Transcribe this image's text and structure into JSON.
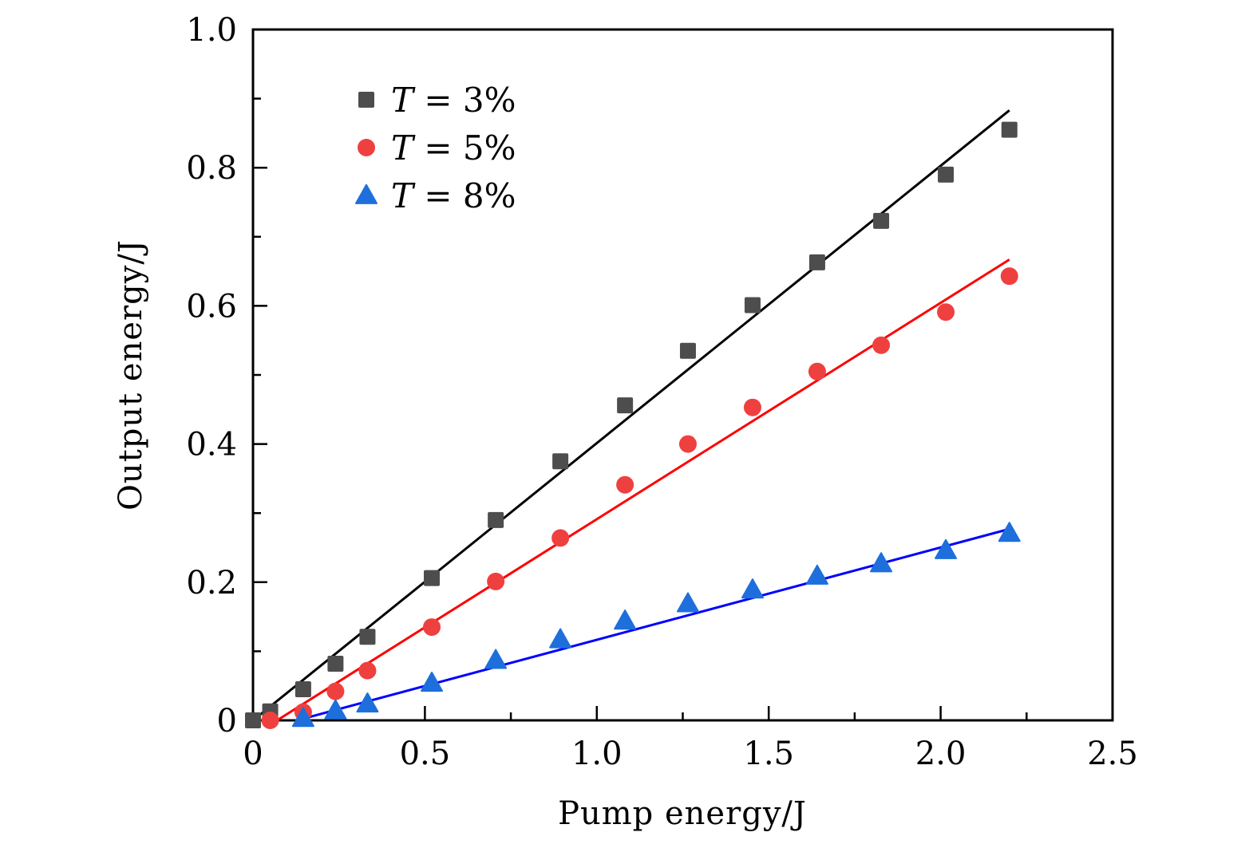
{
  "chart_data": {
    "type": "scatter",
    "title": "",
    "xlabel": "Pump energy/J",
    "ylabel": "Output energy/J",
    "xlim": [
      0,
      2.5
    ],
    "ylim": [
      0,
      1.0
    ],
    "xticks": [
      0,
      0.5,
      1.0,
      1.5,
      2.0,
      2.5
    ],
    "xtick_labels": [
      "0",
      "0.5",
      "1.0",
      "1.5",
      "2.0",
      "2.5"
    ],
    "yticks": [
      0,
      0.2,
      0.4,
      0.6,
      0.8,
      1.0
    ],
    "ytick_labels": [
      "0",
      "0.2",
      "0.4",
      "0.6",
      "0.8",
      "1.0"
    ],
    "x_minor_step": 0.25,
    "y_minor_step": 0.1,
    "grid": false,
    "legend_position": "top-left",
    "series": [
      {
        "name": "T = 3%",
        "legend_var": "T",
        "legend_rest": " = 3%",
        "marker": "square",
        "marker_color": "#4d4d4d",
        "line_color": "#000000",
        "x": [
          0,
          0.05,
          0.146,
          0.24,
          0.333,
          0.52,
          0.706,
          0.894,
          1.082,
          1.265,
          1.453,
          1.641,
          1.827,
          2.015,
          2.2
        ],
        "y": [
          0,
          0.013,
          0.045,
          0.082,
          0.121,
          0.206,
          0.29,
          0.375,
          0.456,
          0.535,
          0.601,
          0.663,
          0.723,
          0.79,
          0.855
        ],
        "fit": {
          "x": [
            0.0,
            2.2
          ],
          "y": [
            0.0,
            0.883
          ]
        }
      },
      {
        "name": "T = 5%",
        "legend_var": "T",
        "legend_rest": " = 5%",
        "marker": "circle",
        "marker_color": "#ef4040",
        "line_color": "#ff0000",
        "x": [
          0.05,
          0.146,
          0.24,
          0.333,
          0.52,
          0.706,
          0.894,
          1.082,
          1.265,
          1.453,
          1.641,
          1.827,
          2.015,
          2.2
        ],
        "y": [
          0.0,
          0.012,
          0.042,
          0.072,
          0.135,
          0.201,
          0.264,
          0.341,
          0.4,
          0.453,
          0.505,
          0.543,
          0.591,
          0.643
        ],
        "fit": {
          "x": [
            0.07,
            2.2
          ],
          "y": [
            0.0,
            0.667
          ]
        }
      },
      {
        "name": "T = 8%",
        "legend_var": "T",
        "legend_rest": " = 8%",
        "marker": "triangle",
        "marker_color": "#1e6fdc",
        "line_color": "#0000ff",
        "x": [
          0.146,
          0.24,
          0.333,
          0.52,
          0.706,
          0.894,
          1.082,
          1.265,
          1.453,
          1.641,
          1.827,
          2.015,
          2.2
        ],
        "y": [
          0.003,
          0.014,
          0.024,
          0.054,
          0.087,
          0.117,
          0.144,
          0.169,
          0.189,
          0.209,
          0.227,
          0.246,
          0.271
        ],
        "fit": {
          "x": [
            0.15,
            2.2
          ],
          "y": [
            0.003,
            0.277
          ]
        }
      }
    ]
  }
}
